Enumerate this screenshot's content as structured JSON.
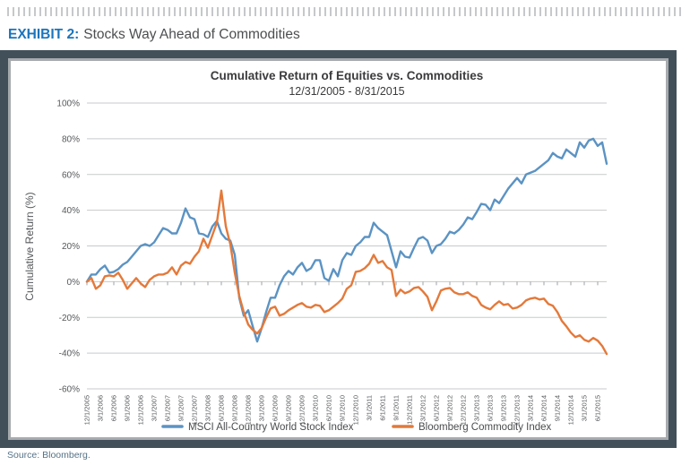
{
  "header": {
    "exhibit_label": "EXHIBIT 2:",
    "exhibit_title": "Stocks Way Ahead of Commodities"
  },
  "source": "Source: Bloomberg.",
  "colors": {
    "exhibit_blue": "#1b75bc",
    "frame_dark": "#42505a",
    "frame_silver": "#a7abae",
    "gridline": "#c8cacc",
    "axis_text": "#55575a",
    "msci_blue": "#5b93c3",
    "commodity_orange": "#e4793a",
    "source_text": "#567286"
  },
  "chart_data": {
    "type": "line",
    "title": "Cumulative Return of Equities vs. Commodities",
    "subtitle": "12/31/2005 - 8/31/2015",
    "ylabel": "Cumulative Return (%)",
    "ylim": [
      -60,
      100
    ],
    "ytick_step": 20,
    "ytick_labels": [
      "100%",
      "80%",
      "60%",
      "40%",
      "20%",
      "0%",
      "-20%",
      "-40%",
      "-60%"
    ],
    "grid": true,
    "legend_position": "bottom",
    "x_frequency": "monthly",
    "x_tick_every": 3,
    "x_tick_labels": [
      "12/1/2005",
      "3/1/2006",
      "6/1/2006",
      "9/1/2006",
      "12/1/2006",
      "3/1/2007",
      "6/1/2007",
      "9/1/2007",
      "12/1/2007",
      "3/1/2008",
      "6/1/2008",
      "9/1/2008",
      "12/1/2008",
      "3/1/2009",
      "6/1/2009",
      "9/1/2009",
      "12/1/2009",
      "3/1/2010",
      "6/1/2010",
      "9/1/2010",
      "12/1/2010",
      "3/1/2011",
      "6/1/2011",
      "9/1/2011",
      "12/1/2011",
      "3/1/2012",
      "6/1/2012",
      "9/1/2012",
      "12/1/2012",
      "3/1/2013",
      "6/1/2013",
      "9/1/2013",
      "12/1/2013",
      "3/1/2014",
      "6/1/2014",
      "9/1/2014",
      "12/1/2014",
      "3/1/2015",
      "6/1/2015"
    ],
    "series": [
      {
        "name": "MSCI All-Country World Stock Index",
        "color": "#5b93c3",
        "values": [
          0,
          4,
          4,
          7,
          9,
          5,
          5.5,
          7,
          9.5,
          11,
          14,
          17,
          20,
          21,
          20,
          22,
          26,
          30,
          29,
          27,
          27,
          33,
          41,
          36,
          35,
          27,
          26.5,
          25,
          31,
          34,
          27,
          24,
          23,
          15,
          -9,
          -19,
          -16,
          -25,
          -33.5,
          -26,
          -17,
          -9,
          -9,
          -2,
          3,
          6,
          4,
          8,
          10.5,
          6,
          7.5,
          12,
          12,
          2,
          0.5,
          7,
          3,
          12,
          16,
          15,
          20,
          22,
          25,
          25,
          33,
          30,
          28,
          26,
          17,
          8,
          17,
          14,
          13.5,
          19,
          24,
          25,
          23,
          16,
          20,
          21,
          24,
          28,
          27,
          29,
          32,
          36,
          35,
          39,
          43.5,
          43,
          40,
          46,
          44,
          48,
          52,
          55,
          58,
          55,
          60,
          61,
          62,
          64,
          66,
          68,
          72,
          70,
          69,
          74,
          72,
          70,
          78,
          75,
          79,
          80,
          76,
          78,
          66
        ]
      },
      {
        "name": "Bloomberg Commodity Index",
        "color": "#e4793a",
        "values": [
          0,
          2,
          -4,
          -2,
          3,
          3.5,
          3,
          5,
          1,
          -4,
          -1,
          2,
          -1,
          -3,
          1,
          3,
          4,
          4,
          5,
          8,
          4,
          9,
          11,
          10,
          14,
          17,
          24,
          19,
          26,
          33,
          51,
          31,
          21,
          5,
          -8,
          -17,
          -24,
          -27,
          -29,
          -26,
          -20,
          -15,
          -14,
          -19,
          -18,
          -16,
          -14.5,
          -13,
          -12,
          -14,
          -14.5,
          -13,
          -13.5,
          -17,
          -16,
          -14,
          -12,
          -9.5,
          -4,
          -2,
          5.5,
          6,
          7.5,
          10,
          15,
          10.5,
          11.5,
          8,
          6.5,
          -8,
          -4.5,
          -6.5,
          -5.5,
          -3.5,
          -3,
          -5.5,
          -8.5,
          -16,
          -11,
          -5,
          -4,
          -3.5,
          -6,
          -7,
          -7,
          -6,
          -8,
          -9,
          -13,
          -14.5,
          -15.5,
          -13,
          -11,
          -13,
          -12.5,
          -15,
          -14.5,
          -13,
          -10.5,
          -9.5,
          -9,
          -10,
          -9.5,
          -12.5,
          -13.5,
          -17,
          -22,
          -25,
          -28.5,
          -31,
          -30,
          -32.5,
          -33.5,
          -31.5,
          -33,
          -36,
          -40.5
        ]
      }
    ]
  }
}
